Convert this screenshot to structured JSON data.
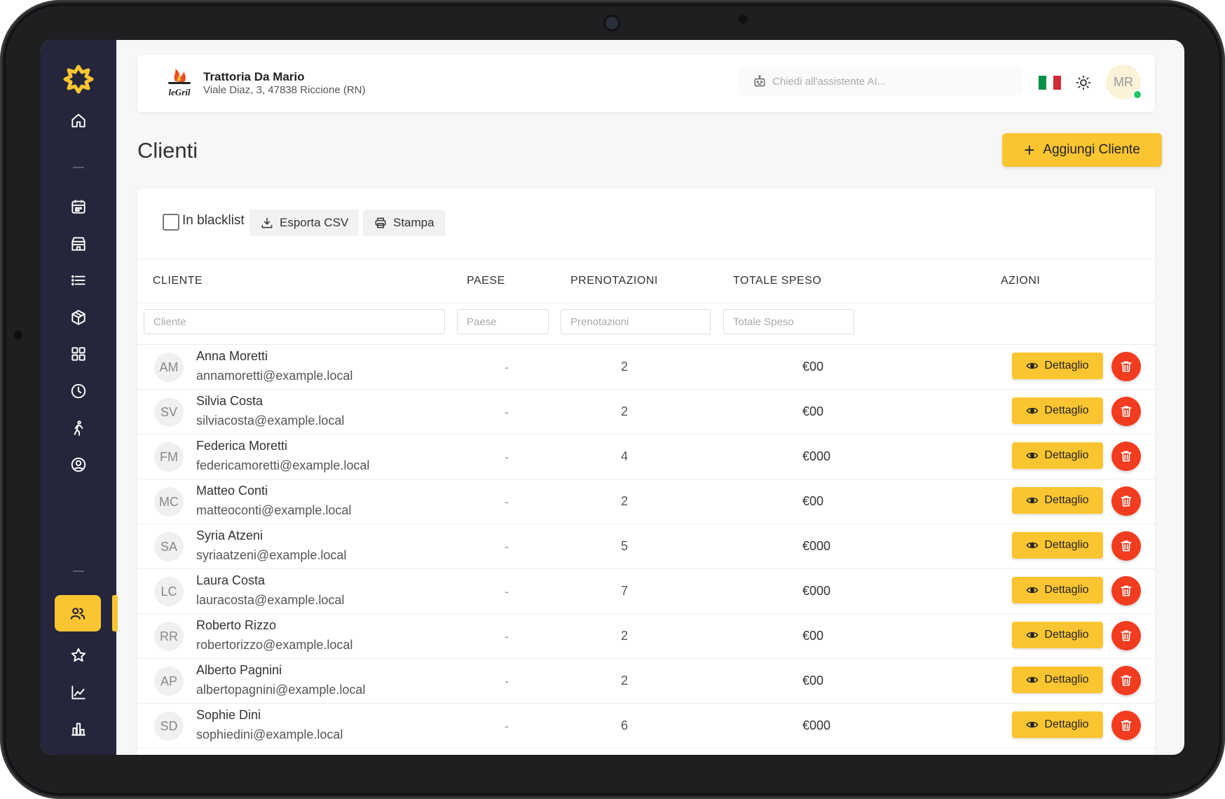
{
  "header": {
    "restaurant_name": "Trattoria Da Mario",
    "restaurant_address": "Viale Diaz, 3, 47838 Riccione (RN)",
    "ai_placeholder": "Chiedi all'assistente AI...",
    "avatar_initials": "MR"
  },
  "page": {
    "title": "Clienti",
    "add_button": "Aggiungi Cliente"
  },
  "toolbar": {
    "blacklist_label": "In blacklist",
    "export_label": "Esporta CSV",
    "print_label": "Stampa"
  },
  "table": {
    "columns": {
      "cliente": "CLIENTE",
      "paese": "PAESE",
      "prenotazioni": "PRENOTAZIONI",
      "totale": "TOTALE SPESO",
      "azioni": "AZIONI"
    },
    "filters": {
      "cliente": "Cliente",
      "paese": "Paese",
      "prenotazioni": "Prenotazioni",
      "totale": "Totale Speso"
    },
    "detail_label": "Dettaglio",
    "rows": [
      {
        "initials": "AM",
        "name": "Anna Moretti",
        "email": "annamoretti@example.local",
        "paese": "-",
        "prenotazioni": "2",
        "totale": "€00"
      },
      {
        "initials": "SV",
        "name": "Silvia Costa",
        "email": "silviacosta@example.local",
        "paese": "-",
        "prenotazioni": "2",
        "totale": "€00"
      },
      {
        "initials": "FM",
        "name": "Federica Moretti",
        "email": "federicamoretti@example.local",
        "paese": "-",
        "prenotazioni": "4",
        "totale": "€000"
      },
      {
        "initials": "MC",
        "name": "Matteo Conti",
        "email": "matteoconti@example.local",
        "paese": "-",
        "prenotazioni": "2",
        "totale": "€00"
      },
      {
        "initials": "SA",
        "name": "Syria Atzeni",
        "email": "syriaatzeni@example.local",
        "paese": "-",
        "prenotazioni": "5",
        "totale": "€000"
      },
      {
        "initials": "LC",
        "name": "Laura Costa",
        "email": "lauracosta@example.local",
        "paese": "-",
        "prenotazioni": "7",
        "totale": "€000"
      },
      {
        "initials": "RR",
        "name": "Roberto Rizzo",
        "email": "robertorizzo@example.local",
        "paese": "-",
        "prenotazioni": "2",
        "totale": "€00"
      },
      {
        "initials": "AP",
        "name": "Alberto Pagnini",
        "email": "albertopagnini@example.local",
        "paese": "-",
        "prenotazioni": "2",
        "totale": "€00"
      },
      {
        "initials": "SD",
        "name": "Sophie Dini",
        "email": "sophiedini@example.local",
        "paese": "-",
        "prenotazioni": "6",
        "totale": "€000"
      }
    ]
  },
  "sidebar": {
    "icons": [
      "home-icon",
      "calendar-icon",
      "store-icon",
      "list-icon",
      "box-icon",
      "grid-icon",
      "clock-icon",
      "walk-icon",
      "user-circle-icon",
      "users-icon",
      "star-icon",
      "line-chart-icon",
      "bar-chart-icon"
    ],
    "active": "users-icon"
  },
  "colors": {
    "sidebar_bg": "#25253b",
    "accent": "#fbc531",
    "danger": "#f23c1f"
  }
}
